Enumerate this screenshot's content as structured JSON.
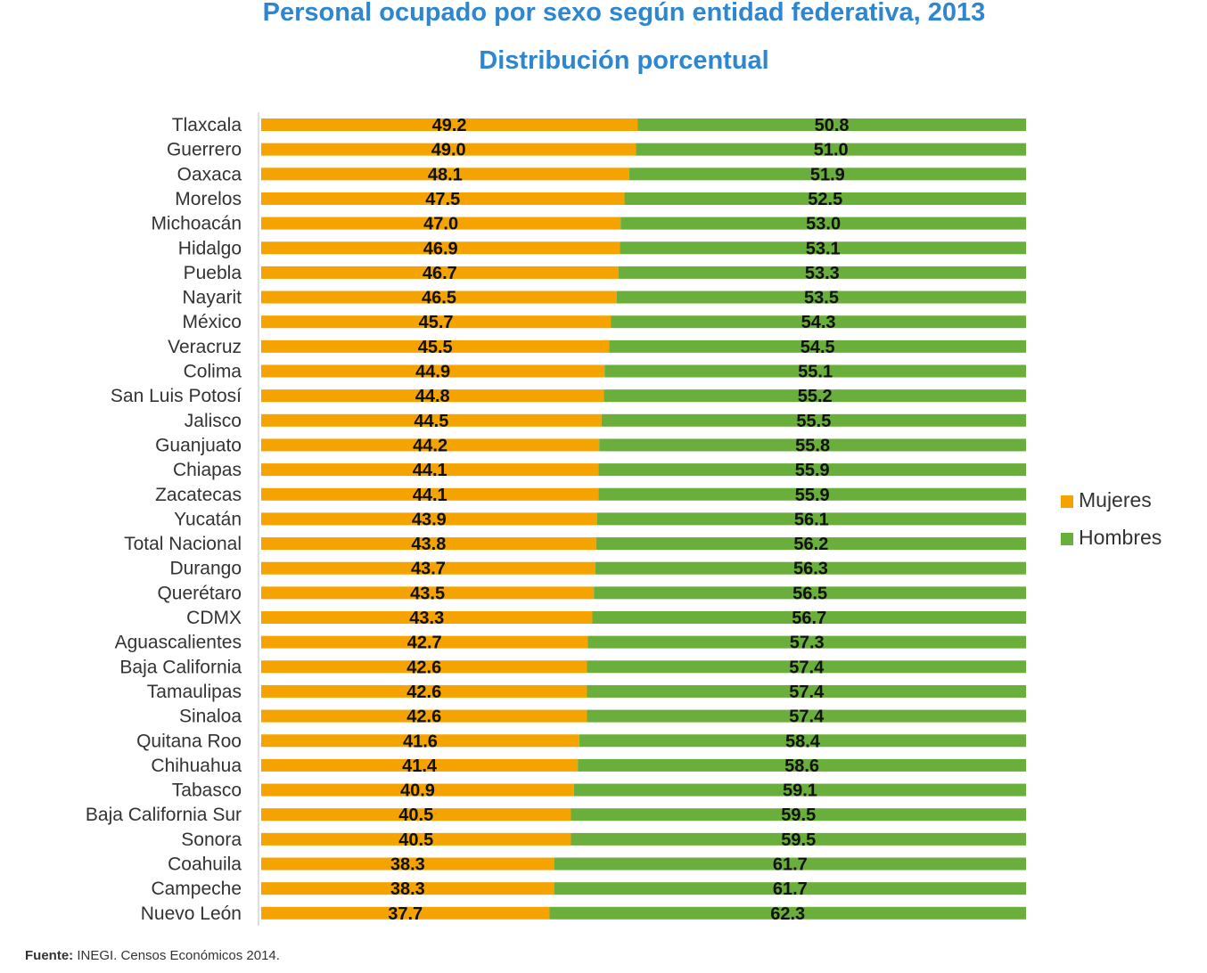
{
  "colors": {
    "mujeres": "#f5a300",
    "hombres": "#6aae3c",
    "title": "#2e86d1"
  },
  "source": {
    "prefix": "Fuente:",
    "text": " INEGI. Censos Económicos 2014."
  },
  "chart_data": {
    "type": "bar",
    "stacked": true,
    "orientation": "horizontal",
    "title": "Personal ocupado por sexo según entidad federativa, 2013",
    "subtitle": "Distribución porcentual",
    "xlim": [
      0,
      100
    ],
    "legend_position": "right",
    "categories": [
      "Tlaxcala",
      "Guerrero",
      "Oaxaca",
      "Morelos",
      "Michoacán",
      "Hidalgo",
      "Puebla",
      "Nayarit",
      "México",
      "Veracruz",
      "Colima",
      "San Luis Potosí",
      "Jalisco",
      "Guanjuato",
      "Chiapas",
      "Zacatecas",
      "Yucatán",
      "Total Nacional",
      "Durango",
      "Querétaro",
      "CDMX",
      "Aguascalientes",
      "Baja California",
      "Tamaulipas",
      "Sinaloa",
      "Quitana Roo",
      "Chihuahua",
      "Tabasco",
      "Baja California Sur",
      "Sonora",
      "Coahuila",
      "Campeche",
      "Nuevo León"
    ],
    "series": [
      {
        "name": "Mujeres",
        "values": [
          49.2,
          49.0,
          48.1,
          47.5,
          47.0,
          46.9,
          46.7,
          46.5,
          45.7,
          45.5,
          44.9,
          44.8,
          44.5,
          44.2,
          44.1,
          44.1,
          43.9,
          43.8,
          43.7,
          43.5,
          43.3,
          42.7,
          42.6,
          42.6,
          42.6,
          41.6,
          41.4,
          40.9,
          40.5,
          40.5,
          38.3,
          38.3,
          37.7
        ]
      },
      {
        "name": "Hombres",
        "values": [
          50.8,
          51.0,
          51.9,
          52.5,
          53.0,
          53.1,
          53.3,
          53.5,
          54.3,
          54.5,
          55.1,
          55.2,
          55.5,
          55.8,
          55.9,
          55.9,
          56.1,
          56.2,
          56.3,
          56.5,
          56.7,
          57.3,
          57.4,
          57.4,
          57.4,
          58.4,
          58.6,
          59.1,
          59.5,
          59.5,
          61.7,
          61.7,
          62.3
        ]
      }
    ]
  }
}
